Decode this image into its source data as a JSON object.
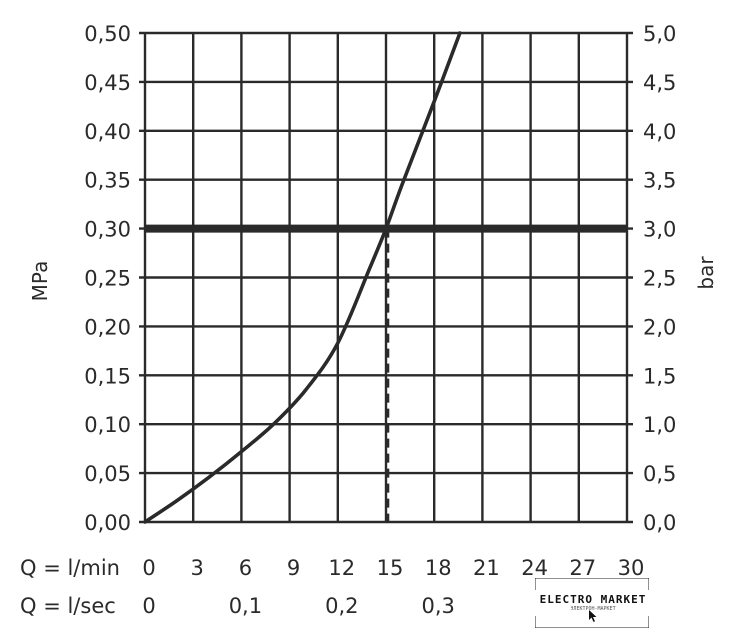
{
  "chart_data": {
    "type": "line",
    "left_axis": {
      "label": "MPa",
      "ylim": [
        0,
        0.5
      ],
      "ticks": [
        "0,00",
        "0,05",
        "0,10",
        "0,15",
        "0,20",
        "0,25",
        "0,30",
        "0,35",
        "0,40",
        "0,45",
        "0,50"
      ]
    },
    "right_axis": {
      "label": "bar",
      "ylim": [
        0,
        5.0
      ],
      "ticks": [
        "0,0",
        "0,5",
        "1,0",
        "1,5",
        "2,0",
        "2,5",
        "3,0",
        "3,5",
        "4,0",
        "4,5",
        "5,0"
      ]
    },
    "x_axis": {
      "xlim": [
        0,
        30
      ],
      "row1_prefix": "Q = l/min",
      "row1_ticks": [
        "0",
        "3",
        "6",
        "9",
        "12",
        "15",
        "18",
        "21",
        "24",
        "27",
        "30"
      ],
      "row2_prefix": "Q = l/sec",
      "row2_ticks": [
        "0",
        "0,1",
        "0,2",
        "0,3"
      ],
      "row2_positions_lmin": [
        0,
        6,
        12,
        18
      ]
    },
    "grid": true,
    "series": [
      {
        "x": [
          0,
          2,
          4,
          6,
          8,
          10,
          12,
          14,
          15,
          16,
          18,
          19.6
        ],
        "y": [
          0,
          0.022,
          0.046,
          0.072,
          0.1,
          0.135,
          0.183,
          0.26,
          0.3,
          0.345,
          0.43,
          0.5
        ]
      }
    ],
    "reference_line": {
      "y": 0.3
    },
    "marker_line": {
      "x": 15,
      "y_from": 0,
      "y_to": 0.3
    }
  },
  "watermark": {
    "title": "ELECTRO MARKET",
    "subtitle": "ЭЛЕКТРОН-МАРКЕТ",
    "icon": "cursor-arrow-icon"
  },
  "colors": {
    "line": "#2a2a2a",
    "grid": "#2a2a2a"
  }
}
